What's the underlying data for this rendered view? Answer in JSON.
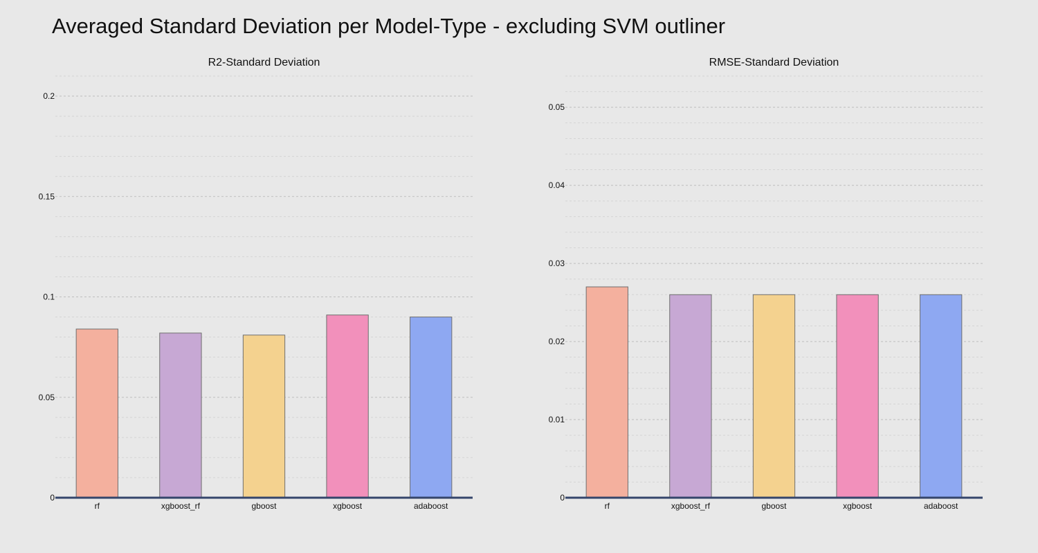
{
  "title": "Averaged Standard Deviation per Model-Type - excluding SVM outliner",
  "chart_data": [
    {
      "type": "bar",
      "title": "R2-Standard Deviation",
      "categories": [
        "rf",
        "xgboost_rf",
        "gboost",
        "xgboost",
        "adaboost"
      ],
      "values": [
        0.084,
        0.082,
        0.081,
        0.091,
        0.09
      ],
      "colors": [
        "#f4b09e",
        "#c7a8d4",
        "#f4d28f",
        "#f290bb",
        "#8ea8f2"
      ],
      "ylim": [
        0,
        0.21
      ],
      "yticks": [
        0,
        0.05,
        0.1,
        0.15,
        0.2
      ],
      "ytick_labels": [
        "0",
        "0.05",
        "0.1",
        "0.15",
        "0.2"
      ],
      "minor_step": 0.01,
      "grid": true,
      "xlabel": "",
      "ylabel": ""
    },
    {
      "type": "bar",
      "title": "RMSE-Standard Deviation",
      "categories": [
        "rf",
        "xgboost_rf",
        "gboost",
        "xgboost",
        "adaboost"
      ],
      "values": [
        0.027,
        0.026,
        0.026,
        0.026,
        0.026
      ],
      "colors": [
        "#f4b09e",
        "#c7a8d4",
        "#f4d28f",
        "#f290bb",
        "#8ea8f2"
      ],
      "ylim": [
        0,
        0.054
      ],
      "yticks": [
        0,
        0.01,
        0.02,
        0.03,
        0.04,
        0.05
      ],
      "ytick_labels": [
        "0",
        "0.01",
        "0.02",
        "0.03",
        "0.04",
        "0.05"
      ],
      "minor_step": 0.002,
      "grid": true,
      "xlabel": "",
      "ylabel": ""
    }
  ]
}
